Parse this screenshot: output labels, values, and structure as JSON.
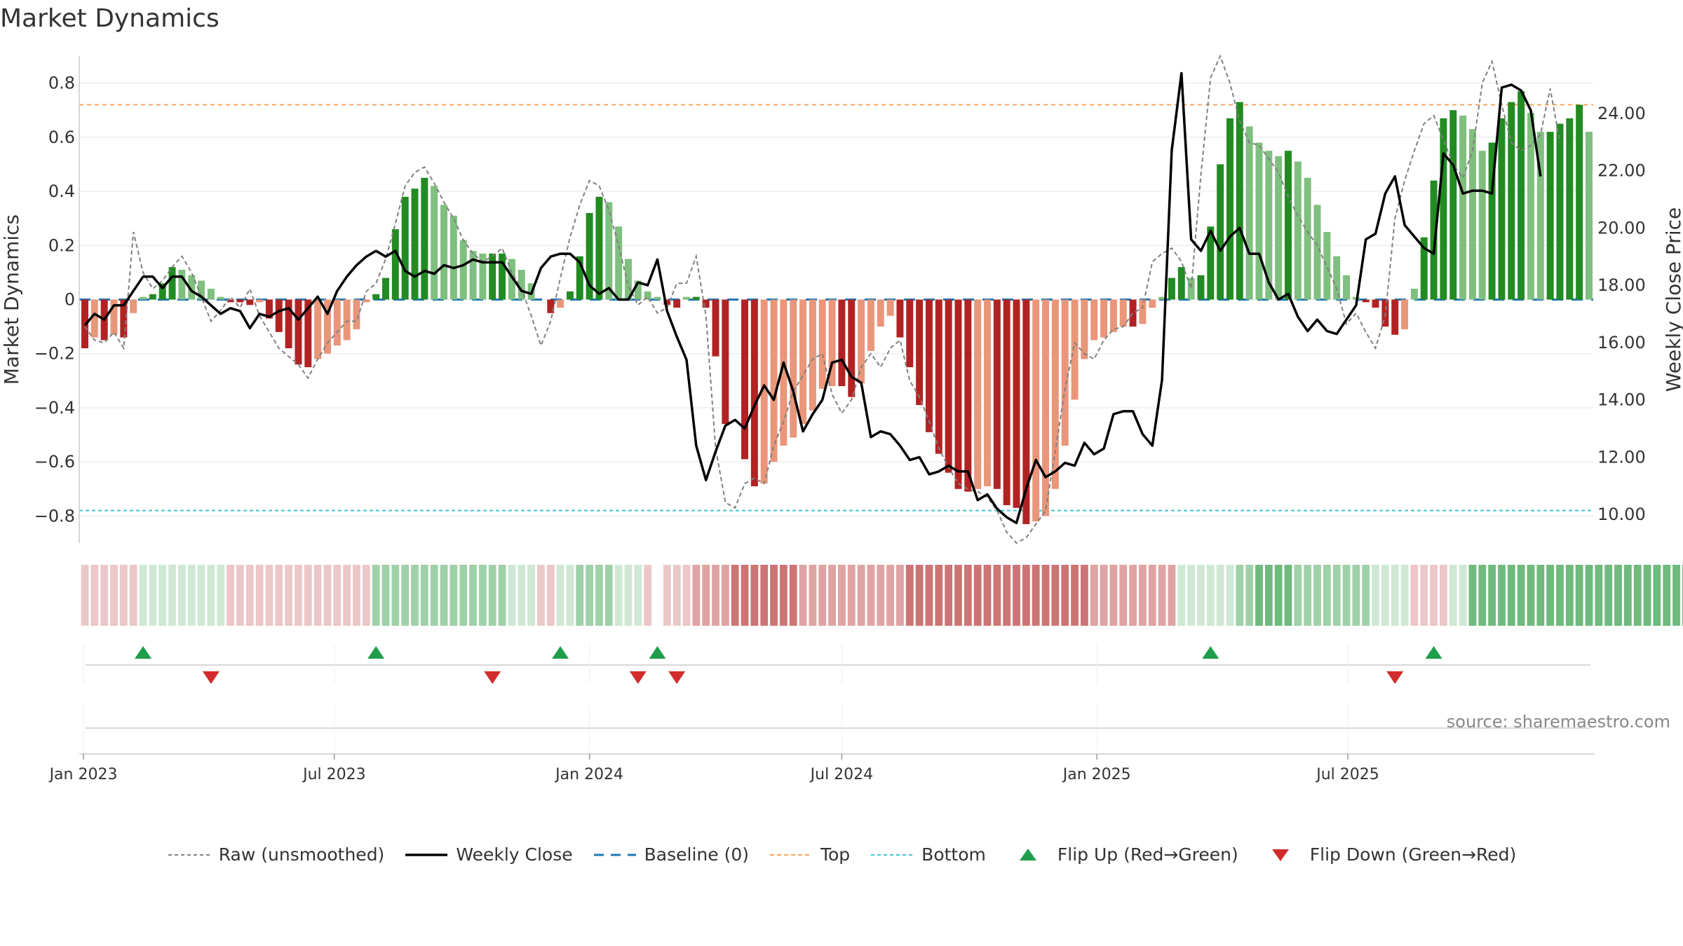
{
  "title": "Market Dynamics",
  "source": "source: sharemaestro.com",
  "colors": {
    "strong_green": "#228B22",
    "light_green": "#7FBF7F",
    "strong_red": "#B22222",
    "light_red": "#E9967A",
    "top_line": "#F4A460",
    "bottom_line": "#40C4D4",
    "baseline": "#1F77B4",
    "close_line": "#000000",
    "raw_line": "#808080",
    "flip_up": "#1E9E4A",
    "flip_down": "#D22B2B"
  },
  "legend": [
    {
      "key": "raw",
      "label": "Raw (unsmoothed)"
    },
    {
      "key": "close",
      "label": "Weekly Close"
    },
    {
      "key": "baseline",
      "label": "Baseline (0)"
    },
    {
      "key": "top",
      "label": "Top"
    },
    {
      "key": "bottom",
      "label": "Bottom"
    },
    {
      "key": "flip_up",
      "label": "Flip Up (Red→Green)"
    },
    {
      "key": "flip_down",
      "label": "Flip Down (Green→Red)"
    }
  ],
  "chart_data": {
    "type": "bar",
    "start_date": "2023-01-02",
    "interval_days": 7,
    "y_left": {
      "label": "Market Dynamics",
      "lim": [
        -0.9,
        0.9
      ],
      "ticks": [
        -0.8,
        -0.6,
        -0.4,
        -0.2,
        0,
        0.2,
        0.4,
        0.6,
        0.8
      ],
      "tick_labels": [
        "−0.8",
        "−0.6",
        "−0.4",
        "−0.2",
        "0",
        "0.2",
        "0.4",
        "0.6",
        "0.8"
      ]
    },
    "y_right": {
      "label": "Weekly Close Price",
      "lim": [
        9.0,
        26.0
      ],
      "ticks": [
        10,
        12,
        14,
        16,
        18,
        20,
        22,
        24
      ],
      "tick_labels": [
        "10.00",
        "12.00",
        "14.00",
        "16.00",
        "18.00",
        "20.00",
        "22.00",
        "24.00"
      ]
    },
    "x_ticks": [
      {
        "date": "2023-01-01",
        "label": "Jan 2023"
      },
      {
        "date": "2023-07-01",
        "label": "Jul 2023"
      },
      {
        "date": "2024-01-01",
        "label": "Jan 2024"
      },
      {
        "date": "2024-07-01",
        "label": "Jul 2024"
      },
      {
        "date": "2025-01-01",
        "label": "Jan 2025"
      },
      {
        "date": "2025-07-01",
        "label": "Jul 2025"
      }
    ],
    "top": 0.72,
    "bottom": -0.78,
    "baseline": 0,
    "grid": true,
    "dynamics": [
      -0.18,
      -0.14,
      -0.15,
      -0.13,
      -0.14,
      -0.05,
      0.01,
      0.02,
      0.06,
      0.12,
      0.11,
      0.09,
      0.07,
      0.04,
      0.01,
      -0.01,
      -0.01,
      -0.02,
      -0.01,
      -0.07,
      -0.12,
      -0.18,
      -0.24,
      -0.25,
      -0.22,
      -0.2,
      -0.17,
      -0.15,
      -0.11,
      -0.01,
      0.02,
      0.08,
      0.26,
      0.38,
      0.41,
      0.45,
      0.42,
      0.35,
      0.31,
      0.22,
      0.18,
      0.17,
      0.17,
      0.17,
      0.15,
      0.11,
      0.06,
      0.0,
      -0.05,
      -0.03,
      0.03,
      0.16,
      0.32,
      0.38,
      0.36,
      0.27,
      0.15,
      0.07,
      0.03,
      0.01,
      -0.02,
      -0.03,
      0.01,
      0.01,
      -0.03,
      -0.21,
      -0.46,
      0.0,
      -0.59,
      -0.69,
      -0.68,
      -0.6,
      -0.54,
      -0.51,
      -0.46,
      -0.41,
      -0.33,
      -0.32,
      -0.32,
      -0.36,
      -0.31,
      -0.19,
      -0.1,
      -0.06,
      -0.14,
      -0.25,
      -0.39,
      -0.49,
      -0.57,
      -0.64,
      -0.7,
      -0.71,
      -0.7,
      -0.69,
      -0.7,
      -0.76,
      -0.77,
      -0.83,
      -0.82,
      -0.8,
      -0.7,
      -0.54,
      -0.37,
      -0.22,
      -0.15,
      -0.14,
      -0.12,
      -0.1,
      -0.1,
      -0.09,
      -0.03,
      0.01,
      0.08,
      0.12,
      0.08,
      0.09,
      0.27,
      0.5,
      0.67,
      0.73,
      0.64,
      0.58,
      0.55,
      0.53,
      0.55,
      0.51,
      0.45,
      0.35,
      0.25,
      0.16,
      0.09,
      0.01,
      -0.01,
      -0.03,
      -0.1,
      -0.13,
      -0.11,
      0.04,
      0.23,
      0.44,
      0.67,
      0.7,
      0.68,
      0.63,
      0.55,
      0.58,
      0.67,
      0.73,
      0.77,
      0.69,
      0.62,
      0.62,
      0.65,
      0.67,
      0.72,
      0.62
    ],
    "raw": [
      -0.1,
      -0.15,
      -0.16,
      -0.12,
      -0.18,
      0.25,
      0.1,
      0.04,
      0.07,
      0.12,
      0.16,
      0.1,
      0.01,
      -0.08,
      -0.04,
      0.01,
      -0.03,
      0.04,
      -0.06,
      -0.12,
      -0.18,
      -0.21,
      -0.24,
      -0.29,
      -0.22,
      -0.16,
      -0.12,
      -0.08,
      -0.08,
      0.03,
      0.06,
      0.15,
      0.28,
      0.42,
      0.47,
      0.49,
      0.43,
      0.36,
      0.3,
      0.22,
      0.17,
      0.14,
      0.16,
      0.19,
      0.1,
      0.04,
      -0.06,
      -0.17,
      -0.08,
      0.08,
      0.23,
      0.35,
      0.44,
      0.42,
      0.33,
      0.2,
      0.05,
      -0.02,
      0.01,
      -0.05,
      -0.03,
      0.06,
      0.06,
      0.16,
      -0.06,
      -0.55,
      -0.75,
      -0.77,
      -0.68,
      -0.66,
      -0.68,
      -0.54,
      -0.45,
      -0.34,
      -0.28,
      -0.22,
      -0.2,
      -0.35,
      -0.42,
      -0.37,
      -0.25,
      -0.2,
      -0.25,
      -0.18,
      -0.15,
      -0.3,
      -0.36,
      -0.45,
      -0.55,
      -0.62,
      -0.68,
      -0.7,
      -0.71,
      -0.73,
      -0.78,
      -0.86,
      -0.9,
      -0.88,
      -0.83,
      -0.78,
      -0.56,
      -0.33,
      -0.16,
      -0.2,
      -0.22,
      -0.15,
      -0.11,
      -0.1,
      -0.05,
      -0.03,
      0.14,
      0.17,
      0.19,
      0.14,
      0.04,
      0.46,
      0.82,
      0.9,
      0.8,
      0.66,
      0.58,
      0.57,
      0.52,
      0.47,
      0.38,
      0.31,
      0.25,
      0.2,
      0.12,
      0.04,
      -0.09,
      -0.05,
      -0.12,
      -0.18,
      -0.06,
      0.3,
      0.44,
      0.55,
      0.65,
      0.68,
      0.59,
      0.5,
      0.45,
      0.55,
      0.8,
      0.88,
      0.72,
      0.58,
      0.55,
      0.57,
      0.61,
      0.78,
      0.58
    ],
    "weekly_close": [
      16.6,
      17.0,
      16.8,
      17.3,
      17.3,
      17.8,
      18.3,
      18.3,
      17.9,
      18.3,
      18.3,
      17.8,
      17.6,
      17.3,
      17.0,
      17.2,
      17.1,
      16.5,
      17.0,
      16.9,
      17.1,
      17.2,
      16.8,
      17.2,
      17.6,
      17.0,
      17.8,
      18.3,
      18.7,
      19.0,
      19.2,
      19.0,
      19.2,
      18.5,
      18.3,
      18.5,
      18.4,
      18.7,
      18.6,
      18.7,
      18.9,
      18.8,
      18.8,
      18.8,
      18.3,
      17.8,
      17.7,
      18.6,
      19.0,
      19.1,
      19.1,
      18.8,
      18.0,
      17.7,
      17.9,
      17.5,
      17.5,
      18.1,
      18.0,
      18.9,
      17.1,
      16.2,
      15.4,
      12.4,
      11.2,
      12.2,
      13.1,
      13.3,
      13.0,
      13.8,
      14.5,
      14.0,
      15.3,
      14.3,
      12.9,
      13.5,
      14.0,
      15.3,
      15.4,
      14.8,
      14.6,
      12.7,
      12.9,
      12.8,
      12.4,
      11.9,
      12.0,
      11.4,
      11.5,
      11.7,
      11.5,
      11.5,
      10.5,
      10.7,
      10.2,
      9.9,
      9.7,
      10.9,
      11.9,
      11.3,
      11.5,
      11.8,
      11.7,
      12.5,
      12.1,
      12.3,
      13.5,
      13.6,
      13.6,
      12.8,
      12.4,
      14.7,
      22.7,
      25.4,
      19.6,
      19.2,
      19.9,
      19.2,
      19.7,
      20.0,
      19.1,
      19.1,
      18.1,
      17.5,
      17.7,
      16.9,
      16.4,
      16.8,
      16.4,
      16.3,
      16.8,
      17.3,
      19.6,
      19.8,
      21.2,
      21.8,
      20.1,
      19.7,
      19.3,
      19.1,
      22.6,
      22.2,
      21.2,
      21.3,
      21.3,
      21.2,
      24.9,
      25.0,
      24.8,
      24.1,
      21.8
    ],
    "regime_levels": [
      -1,
      -1,
      -1,
      -1,
      -1,
      -1,
      1,
      1,
      1,
      1,
      1,
      1,
      1,
      1,
      1,
      -1,
      -1,
      -1,
      -1,
      -1,
      -1,
      -1,
      -1,
      -1,
      -1,
      -1,
      -1,
      -1,
      -1,
      -1,
      2,
      2,
      2,
      2,
      2,
      2,
      2,
      2,
      2,
      2,
      2,
      2,
      2,
      2,
      1,
      1,
      1,
      -1,
      -1,
      1,
      1,
      2,
      2,
      2,
      2,
      1,
      1,
      1,
      -1,
      -1,
      -1,
      -1,
      -1,
      -2,
      -2,
      -2,
      -2,
      -3,
      -3,
      -3,
      -3,
      -3,
      -3,
      -3,
      -2,
      -2,
      -2,
      -2,
      -2,
      -2,
      -2,
      -2,
      -2,
      -2,
      -2,
      -3,
      -3,
      -3,
      -3,
      -3,
      -3,
      -3,
      -3,
      -3,
      -3,
      -3,
      -3,
      -3,
      -3,
      -3,
      -3,
      -3,
      -3,
      -3,
      -2,
      -2,
      -2,
      -2,
      -2,
      -2,
      -2,
      -2,
      -2,
      1,
      1,
      1,
      1,
      1,
      1,
      2,
      2,
      3,
      3,
      3,
      3,
      2,
      2,
      2,
      2,
      2,
      2,
      2,
      2,
      1,
      1,
      1,
      1,
      -1,
      -1,
      -1,
      -1,
      1,
      1,
      3,
      3,
      3,
      3,
      3,
      3,
      3,
      3,
      3,
      3,
      3,
      3,
      3,
      3,
      3,
      3,
      3,
      3,
      3,
      3,
      3,
      3,
      3
    ],
    "regime_gap_index": 59,
    "flip_up_index": [
      6,
      30,
      49,
      59,
      116,
      139
    ],
    "flip_down_index": [
      13,
      42,
      57,
      61,
      135
    ]
  }
}
